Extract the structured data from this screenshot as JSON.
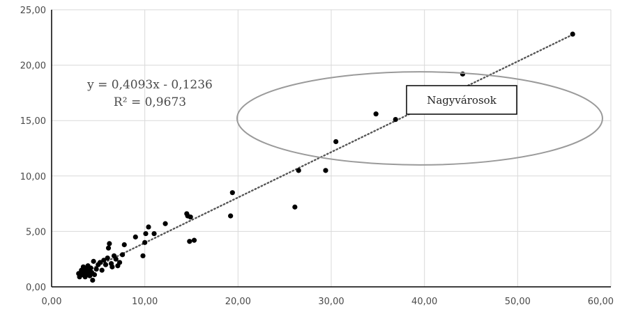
{
  "chart_data": {
    "type": "scatter",
    "xlim": [
      0,
      60
    ],
    "ylim": [
      0,
      25
    ],
    "x_ticks": [
      "0,00",
      "10,00",
      "20,00",
      "30,00",
      "40,00",
      "50,00",
      "60,00"
    ],
    "y_ticks": [
      "0,00",
      "5,00",
      "10,00",
      "15,00",
      "20,00",
      "25,00"
    ],
    "grid": true,
    "trendline": {
      "style": "dotted",
      "slope": 0.4093,
      "intercept": -0.1236,
      "equation_label": "y = 0,4093x - 0,1236",
      "r2_label": "R² = 0,9673"
    },
    "annotation": {
      "label": "Nagyvárosok",
      "ellipse_center": [
        39.5,
        15.2
      ],
      "ellipse_radii": [
        19.6,
        4.2
      ]
    },
    "points": [
      [
        2.9,
        1.2
      ],
      [
        3.0,
        0.9
      ],
      [
        3.2,
        1.5
      ],
      [
        3.3,
        1.1
      ],
      [
        3.4,
        1.8
      ],
      [
        3.5,
        1.3
      ],
      [
        3.6,
        0.9
      ],
      [
        3.7,
        1.6
      ],
      [
        3.8,
        1.2
      ],
      [
        3.9,
        1.9
      ],
      [
        4.0,
        1.4
      ],
      [
        4.1,
        1.0
      ],
      [
        4.2,
        1.7
      ],
      [
        4.3,
        1.3
      ],
      [
        4.4,
        0.6
      ],
      [
        4.5,
        2.3
      ],
      [
        4.6,
        1.1
      ],
      [
        4.8,
        1.6
      ],
      [
        5.0,
        2.0
      ],
      [
        5.2,
        2.2
      ],
      [
        5.4,
        1.5
      ],
      [
        5.6,
        2.4
      ],
      [
        5.8,
        2.0
      ],
      [
        6.0,
        2.6
      ],
      [
        6.1,
        3.5
      ],
      [
        6.2,
        3.9
      ],
      [
        6.4,
        2.1
      ],
      [
        6.5,
        1.8
      ],
      [
        6.7,
        2.8
      ],
      [
        6.9,
        2.5
      ],
      [
        7.1,
        1.9
      ],
      [
        7.3,
        2.2
      ],
      [
        7.6,
        2.9
      ],
      [
        7.8,
        3.8
      ],
      [
        9.0,
        4.5
      ],
      [
        9.8,
        2.8
      ],
      [
        10.0,
        4.0
      ],
      [
        10.1,
        4.8
      ],
      [
        10.4,
        5.4
      ],
      [
        11.0,
        4.8
      ],
      [
        12.2,
        5.7
      ],
      [
        14.5,
        6.6
      ],
      [
        14.6,
        6.4
      ],
      [
        14.8,
        4.1
      ],
      [
        14.9,
        6.3
      ],
      [
        15.3,
        4.2
      ],
      [
        19.2,
        6.4
      ],
      [
        19.4,
        8.5
      ],
      [
        26.1,
        7.2
      ],
      [
        26.5,
        10.5
      ],
      [
        29.4,
        10.5
      ],
      [
        30.5,
        13.1
      ],
      [
        34.8,
        15.6
      ],
      [
        36.9,
        15.1
      ],
      [
        44.1,
        19.2
      ],
      [
        55.9,
        22.8
      ]
    ]
  }
}
